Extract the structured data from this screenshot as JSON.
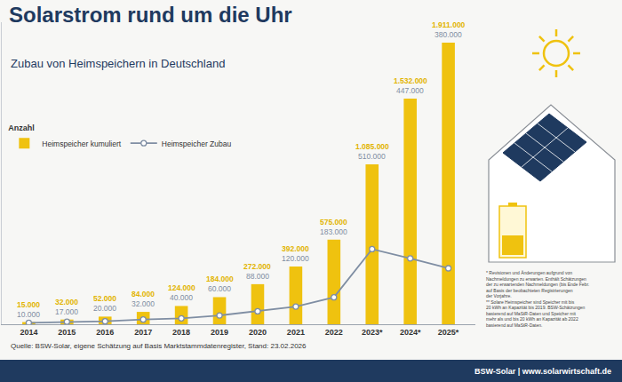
{
  "chart_data": {
    "type": "bar",
    "title": "Solarstrom rund um die Uhr",
    "subtitle": "Zubau von Heimspeichern in Deutschland",
    "legend_title": "Anzahl",
    "categories": [
      "2014",
      "2015",
      "2016",
      "2017",
      "2018",
      "2019",
      "2020",
      "2021",
      "2022",
      "2023*",
      "2024*",
      "2025*"
    ],
    "series": [
      {
        "name": "Heimspeicher kumuliert",
        "type": "bar",
        "color": "#efc20f",
        "values": [
          15000,
          32000,
          52000,
          84000,
          124000,
          184000,
          272000,
          392000,
          575000,
          1085000,
          1532000,
          1911000
        ],
        "value_labels": [
          "15.000",
          "32.000",
          "52.000",
          "84.000",
          "124.000",
          "184.000",
          "272.000",
          "392.000",
          "575.000",
          "1.085.000",
          "1.532.000",
          "1.911.000"
        ]
      },
      {
        "name": "Heimspeicher Zubau",
        "type": "line",
        "color": "#7f8ea3",
        "marker": "circle",
        "line_style": "solid",
        "values": [
          10000,
          17000,
          20000,
          32000,
          40000,
          60000,
          88000,
          120000,
          183000,
          510000,
          447000,
          380000
        ],
        "value_labels": [
          "10.000",
          "17.000",
          "20.000",
          "32.000",
          "40.000",
          "60.000",
          "88.000",
          "120.000",
          "183.000",
          "510.000",
          "447.000",
          "380.000"
        ]
      }
    ],
    "ylim": [
      0,
      2050000
    ],
    "grid": false,
    "data_labels": true,
    "tick_labels": "x",
    "legend": "upper left",
    "source": "Quelle: BSW-Solar, eigene Schätzung auf Basis Marktstammdatenregister, Stand: 23.02.2026",
    "notes": [
      "* Revisionen und Änderungen aufgrund von",
      "Nachmeldungen zu erwarten. Enthält Schätzungen",
      "der zu erwartenden Nachmeldungen (bis Ende Febr.",
      "auf Basis der beobachteten Registrierungen",
      "der Vorjahre.",
      "** Solare Heimspeicher sind Speicher mit bis",
      "20 kWh an Kapazität bis 2019. BSW-Schätzungen",
      "basierend auf MaStR-Daten und Speicher mit",
      "mehr als und bis 20 kWh an Kapazität ab 2022",
      "basierend auf MaStR-Daten."
    ],
    "footer": "BSW-Solar | www.solarwirtschaft.de"
  }
}
